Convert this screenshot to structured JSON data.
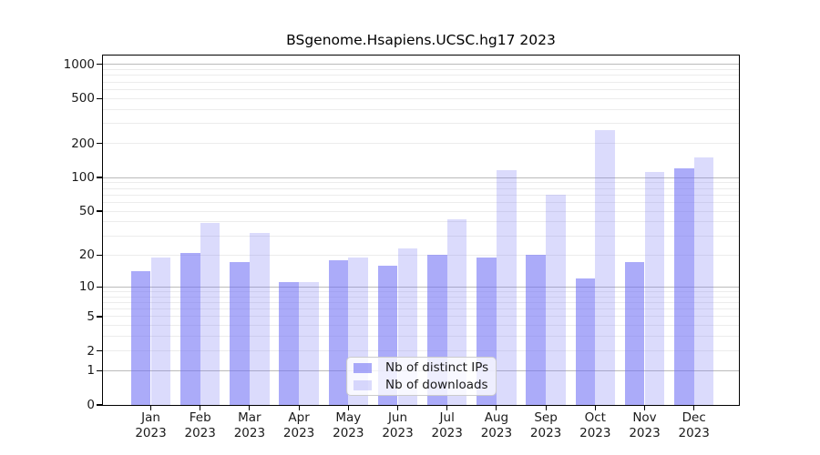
{
  "chart_data": {
    "type": "bar",
    "title": "BSgenome.Hsapiens.UCSC.hg17 2023",
    "categories": [
      {
        "month": "Jan",
        "year": "2023"
      },
      {
        "month": "Feb",
        "year": "2023"
      },
      {
        "month": "Mar",
        "year": "2023"
      },
      {
        "month": "Apr",
        "year": "2023"
      },
      {
        "month": "May",
        "year": "2023"
      },
      {
        "month": "Jun",
        "year": "2023"
      },
      {
        "month": "Jul",
        "year": "2023"
      },
      {
        "month": "Aug",
        "year": "2023"
      },
      {
        "month": "Sep",
        "year": "2023"
      },
      {
        "month": "Oct",
        "year": "2023"
      },
      {
        "month": "Nov",
        "year": "2023"
      },
      {
        "month": "Dec",
        "year": "2023"
      }
    ],
    "series": [
      {
        "name": "Nb of distinct IPs",
        "color": "rgba(110,110,245,0.58)",
        "values": [
          14,
          21,
          17,
          11,
          18,
          16,
          20,
          19,
          20,
          12,
          17,
          121
        ]
      },
      {
        "name": "Nb of downloads",
        "color": "rgba(110,110,245,0.25)",
        "values": [
          19,
          39,
          32,
          11,
          19,
          23,
          42,
          117,
          70,
          265,
          113,
          150
        ]
      }
    ],
    "yscale": "log10(1+x)",
    "ylim": [
      0,
      1200
    ],
    "yticks": [
      0,
      1,
      2,
      5,
      10,
      20,
      50,
      100,
      200,
      500,
      1000
    ],
    "grid": {
      "major_lines": [
        1,
        10,
        100,
        1000
      ],
      "minor_lines": [
        2,
        3,
        4,
        5,
        6,
        7,
        8,
        9,
        20,
        30,
        40,
        50,
        60,
        70,
        80,
        90,
        200,
        300,
        400,
        500,
        600,
        700,
        800,
        900
      ],
      "major_color": "#bbbbbb",
      "minor_color": "#ececec"
    },
    "legend_position": "inside-bottom-center",
    "xlabel": "",
    "ylabel": ""
  }
}
